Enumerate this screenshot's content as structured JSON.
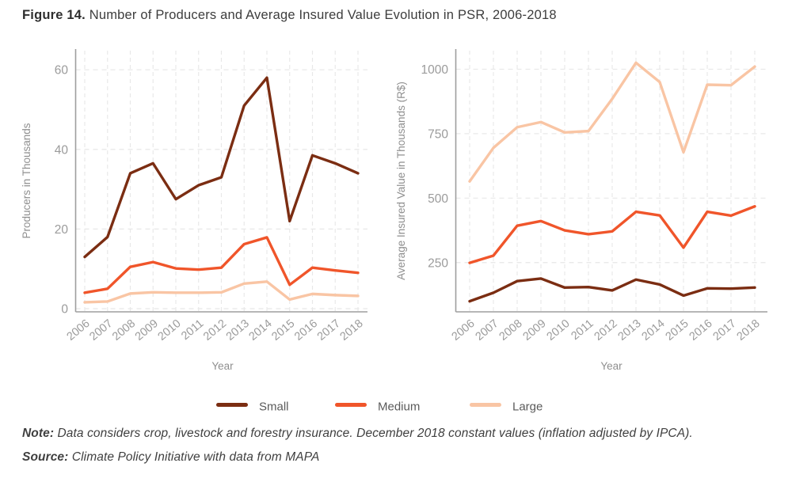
{
  "figure": {
    "title_prefix": "Figure 14.",
    "title_text": " Number of Producers and Average Insured Value Evolution in PSR, 2006-2018",
    "note_label": "Note:",
    "note_text": " Data considers crop, livestock and forestry insurance. December 2018 constant values (inflation adjusted by IPCA).",
    "source_label": "Source:",
    "source_text": " Climate Policy Initiative with data from MAPA"
  },
  "colors": {
    "small": "#7B2D12",
    "medium": "#F0552A",
    "large": "#F9C5A4",
    "grid": "#E8E8E8",
    "axis": "#9E9E9E",
    "tick_label": "#9B9B9B",
    "axis_label": "#8F8F8F",
    "legend_label": "#5A5A5A"
  },
  "legend": [
    {
      "label": "Small",
      "color_key": "small"
    },
    {
      "label": "Medium",
      "color_key": "medium"
    },
    {
      "label": "Large",
      "color_key": "large"
    }
  ],
  "chart_data": [
    {
      "type": "line",
      "title": "",
      "xlabel": "Year",
      "ylabel": "Producers in Thousands",
      "x": [
        2006,
        2007,
        2008,
        2009,
        2010,
        2011,
        2012,
        2013,
        2014,
        2015,
        2016,
        2017,
        2018
      ],
      "yticks": [
        0,
        20,
        40,
        60
      ],
      "ylim": [
        -0.6,
        64.8
      ],
      "grid": true,
      "legend_position": "bottom",
      "series": [
        {
          "name": "Small",
          "color_key": "small",
          "values": [
            13,
            18,
            34,
            36.5,
            27.5,
            31,
            33,
            51,
            58,
            22,
            38.5,
            36.5,
            34
          ]
        },
        {
          "name": "Medium",
          "color_key": "medium",
          "values": [
            4,
            5,
            10.5,
            11.7,
            10.1,
            9.8,
            10.3,
            16.2,
            17.9,
            6,
            10.3,
            9.6,
            9
          ]
        },
        {
          "name": "Large",
          "color_key": "large",
          "values": [
            1.6,
            1.8,
            3.8,
            4.1,
            4,
            4,
            4.1,
            6.3,
            6.8,
            2.3,
            3.7,
            3.4,
            3.2
          ]
        }
      ]
    },
    {
      "type": "line",
      "title": "",
      "xlabel": "Year",
      "ylabel": "Average Insured Value in Thousands (R$)",
      "x": [
        2006,
        2007,
        2008,
        2009,
        2010,
        2011,
        2012,
        2013,
        2014,
        2015,
        2016,
        2017,
        2018
      ],
      "yticks": [
        250,
        500,
        750,
        1000
      ],
      "ylim": [
        62,
        1072
      ],
      "grid": true,
      "legend_position": "bottom",
      "series": [
        {
          "name": "Small",
          "color_key": "small",
          "values": [
            100,
            133,
            178,
            188,
            153,
            155,
            142,
            184,
            165,
            122,
            150,
            149,
            153
          ]
        },
        {
          "name": "Medium",
          "color_key": "medium",
          "values": [
            249,
            277,
            393,
            411,
            375,
            360,
            371,
            447,
            433,
            308,
            447,
            432,
            468
          ]
        },
        {
          "name": "Large",
          "color_key": "large",
          "values": [
            565,
            695,
            775,
            795,
            755,
            760,
            885,
            1025,
            950,
            678,
            940,
            938,
            1010
          ]
        }
      ]
    }
  ]
}
